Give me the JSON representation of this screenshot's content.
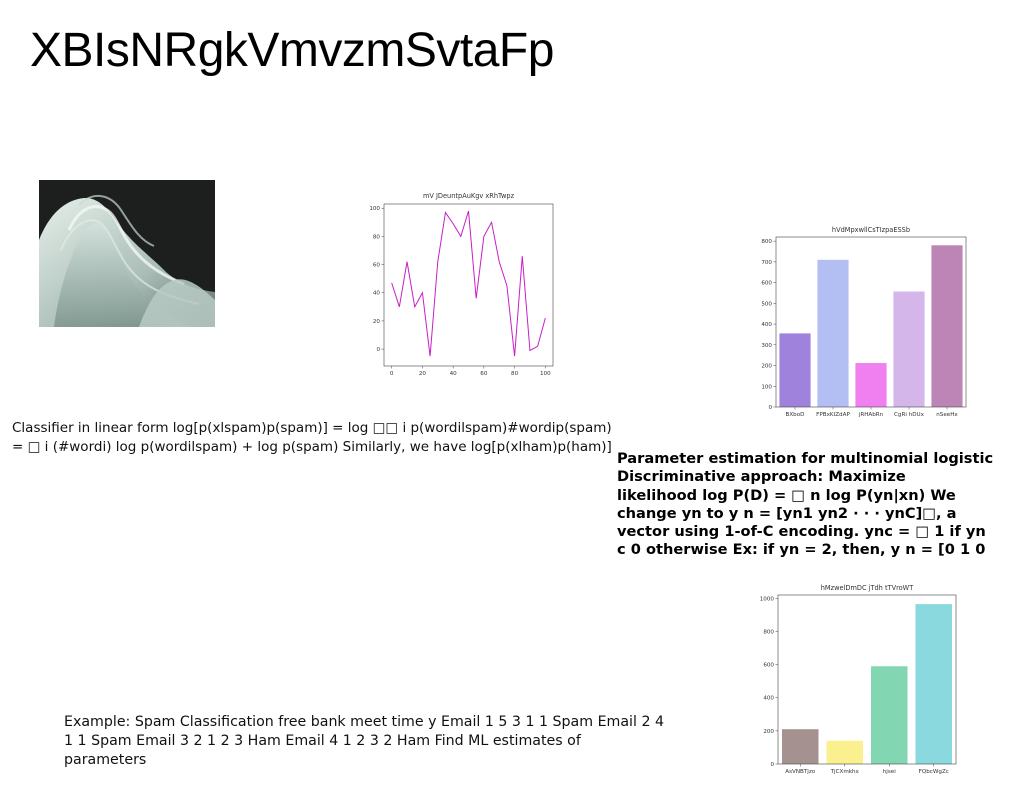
{
  "page": {
    "title": "XBIsNRgkVmvzmSvtaFp"
  },
  "texts": {
    "classifier": "Classifier in linear form log[p(xlspam)p(spam)] = log □□ i p(wordilspam)#wordip(spam)\n= □ i (#wordi) log p(wordilspam) + log p(spam) Similarly, we have log[p(xlham)p(ham)]",
    "parameter": "Parameter estimation for multinomial logistic\nDiscriminative approach: Maximize\nlikelihood log P(D) = □ n log P(yn|xn) We\nchange yn to y n = [yn1 yn2 · · · ynC]□, a\nvector using 1-of-C encoding. ync = □ 1 if yn\nc 0 otherwise Ex: if yn = 2, then, y n = [0 1 0",
    "example": "Example: Spam Classification free bank meet time y Email 1 5 3 1 1 Spam Email 2 4\n1 1 Spam Email 3 2 1 2 3 Ham Email 4 1 2 3 2 Ham Find ML estimates of parameters"
  },
  "chart_data": [
    {
      "type": "line",
      "title": "mV JDeuntpAuKgv xRhTwpz",
      "x": [
        0,
        5,
        10,
        15,
        20,
        25,
        30,
        35,
        40,
        45,
        50,
        55,
        60,
        65,
        70,
        75,
        80,
        85,
        90,
        95,
        100
      ],
      "values": [
        47,
        30,
        62,
        30,
        40,
        -5,
        62,
        97,
        89,
        80,
        98,
        36,
        80,
        90,
        62,
        45,
        -5,
        66,
        -1,
        2,
        22
      ],
      "xlim": [
        -5,
        105
      ],
      "ylim": [
        -12,
        103
      ],
      "xticks": [
        0,
        20,
        40,
        60,
        80,
        100
      ],
      "yticks": [
        0,
        20,
        40,
        60,
        80,
        100
      ],
      "color": "#c71fc7"
    },
    {
      "type": "bar",
      "title": "hVdMpxwllCsTIzpaESSb",
      "categories": [
        "BXboD",
        "FPBxKIZdAP",
        "jRHAbRn",
        "CgRi hDUx",
        "nSeeHx"
      ],
      "values": [
        355,
        710,
        212,
        557,
        780
      ],
      "colors": [
        "#9e82dc",
        "#b3bff2",
        "#f07ff0",
        "#d4b6ea",
        "#bd85b5"
      ],
      "ylim": [
        0,
        820
      ],
      "yticks": [
        0,
        100,
        200,
        300,
        400,
        500,
        600,
        700,
        800
      ]
    },
    {
      "type": "bar",
      "title": "hMzwelDmDC jTdh tTVroWT",
      "categories": [
        "AsVNBTjzo",
        "TjCXmkhx",
        "hjsei",
        "FQbcWgZc"
      ],
      "values": [
        210,
        140,
        590,
        965
      ],
      "colors": [
        "#a59190",
        "#fbf08e",
        "#83d6b2",
        "#89d9df"
      ],
      "ylim": [
        0,
        1020
      ],
      "yticks": [
        0,
        200,
        400,
        600,
        800,
        1000
      ]
    }
  ]
}
